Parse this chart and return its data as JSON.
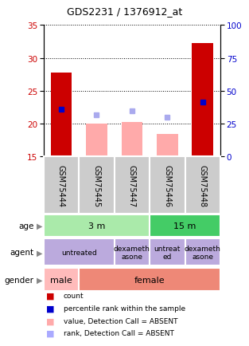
{
  "title": "GDS2231 / 1376912_at",
  "samples": [
    "GSM75444",
    "GSM75445",
    "GSM75447",
    "GSM75446",
    "GSM75448"
  ],
  "bar_values": [
    27.8,
    20.0,
    20.3,
    18.5,
    32.2
  ],
  "bar_colors": [
    "#cc0000",
    "#ffaaaa",
    "#ffaaaa",
    "#ffaaaa",
    "#cc0000"
  ],
  "bar_bottom": 15,
  "percentile_values": [
    22.2,
    null,
    null,
    null,
    23.3
  ],
  "rank_absent_values": [
    null,
    21.3,
    22.0,
    21.0,
    null
  ],
  "ylim_left": [
    15,
    35
  ],
  "ylim_right": [
    0,
    100
  ],
  "yticks_left": [
    15,
    20,
    25,
    30,
    35
  ],
  "yticks_right": [
    0,
    25,
    50,
    75,
    100
  ],
  "left_axis_color": "#cc0000",
  "right_axis_color": "#0000cc",
  "age_spans": [
    {
      "label": "3 m",
      "start": 0,
      "end": 3,
      "color": "#aaeaaa"
    },
    {
      "label": "15 m",
      "start": 3,
      "end": 5,
      "color": "#44cc66"
    }
  ],
  "agent_spans": [
    {
      "label": "untreated",
      "start": 0,
      "end": 2,
      "color": "#bbaadd"
    },
    {
      "label": "dexameth\nasone",
      "start": 2,
      "end": 3,
      "color": "#bbaadd"
    },
    {
      "label": "untreat\ned",
      "start": 3,
      "end": 4,
      "color": "#bbaadd"
    },
    {
      "label": "dexameth\nasone",
      "start": 4,
      "end": 5,
      "color": "#bbaadd"
    }
  ],
  "gender_spans": [
    {
      "label": "male",
      "start": 0,
      "end": 1,
      "color": "#ffbbbb"
    },
    {
      "label": "female",
      "start": 1,
      "end": 5,
      "color": "#ee8877"
    }
  ],
  "legend_items": [
    {
      "color": "#cc0000",
      "label": "count"
    },
    {
      "color": "#0000cc",
      "label": "percentile rank within the sample"
    },
    {
      "color": "#ffaaaa",
      "label": "value, Detection Call = ABSENT"
    },
    {
      "color": "#aaaaff",
      "label": "rank, Detection Call = ABSENT"
    }
  ]
}
